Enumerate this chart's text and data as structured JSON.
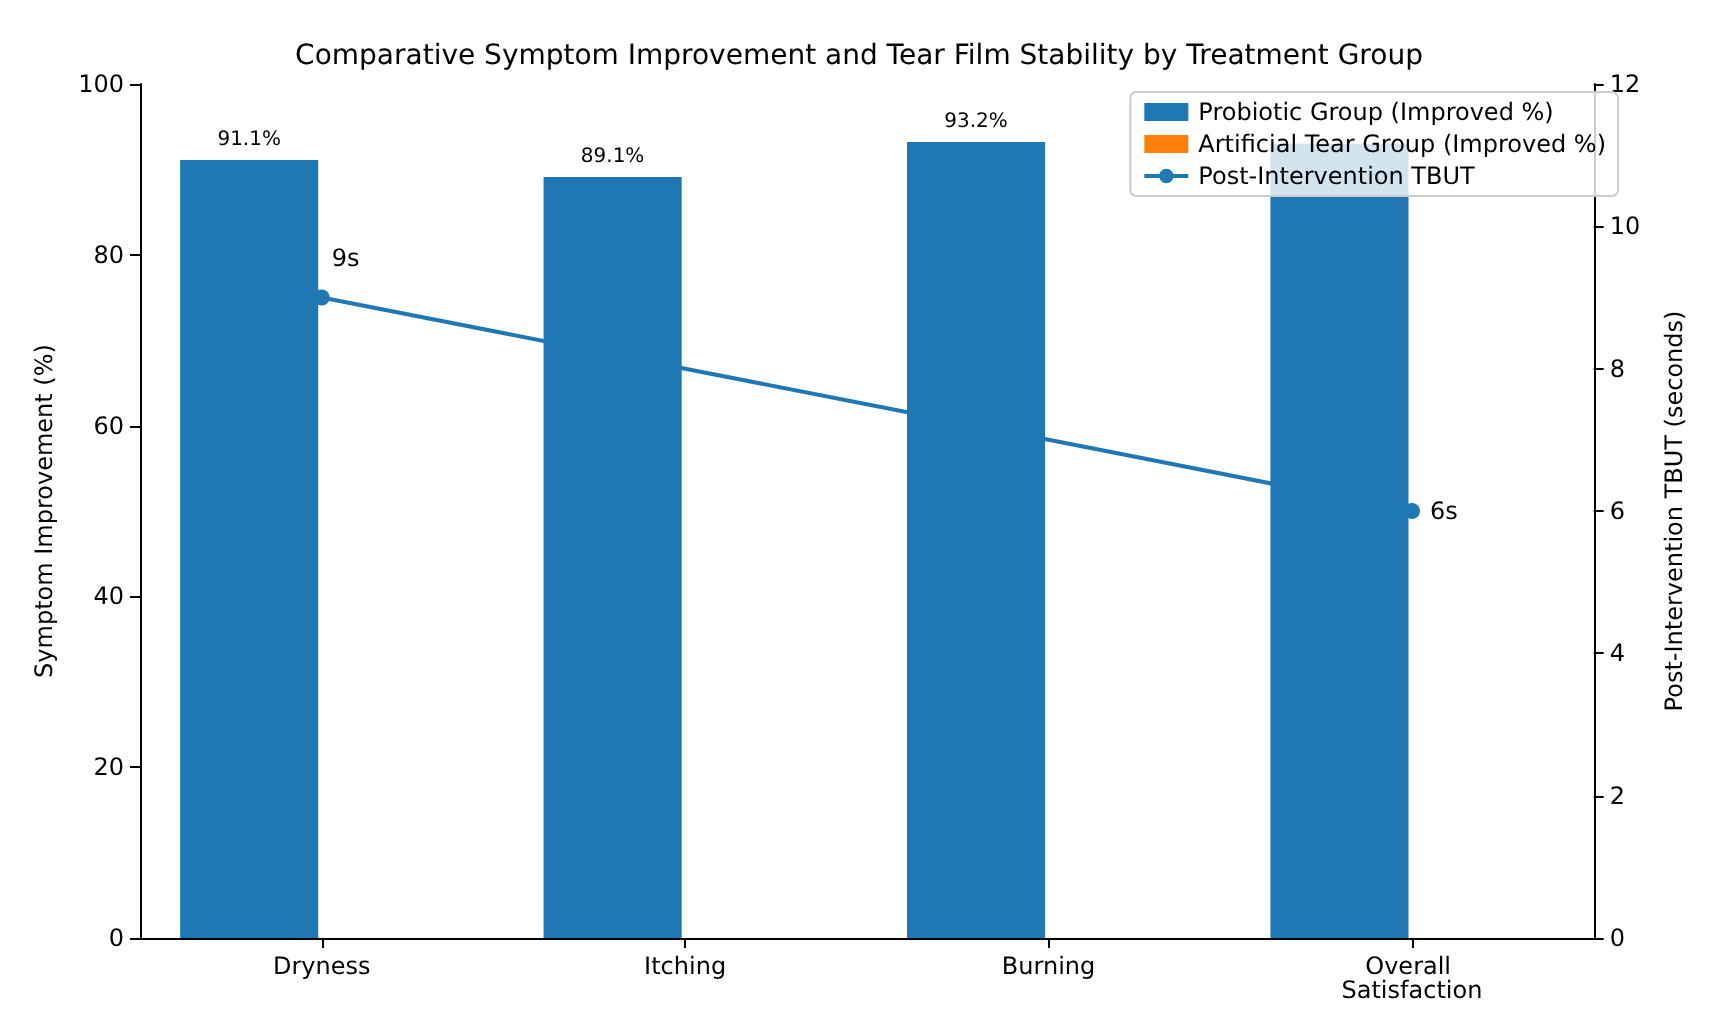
{
  "chart_data": {
    "type": "bar",
    "title": "Comparative Symptom Improvement and Tear Film Stability by Treatment Group",
    "ylabel": "Symptom Improvement (%)",
    "y2label": "Post-Intervention TBUT (seconds)",
    "categories": [
      "Dryness",
      "Itching",
      "Burning",
      "Overall Satisfaction"
    ],
    "series": [
      {
        "name": "Probiotic Group (Improved %)",
        "color": "#1f77b4",
        "values": [
          91.1,
          89.1,
          93.2,
          93
        ],
        "value_labels": [
          "91.1%",
          "89.1%",
          "93.2%",
          null
        ]
      },
      {
        "name": "Artificial Tear Group (Improved %)",
        "color": "#ff7f0e",
        "values": [
          0,
          0,
          0,
          0
        ]
      },
      {
        "name": "Post-Intervention TBUT",
        "type": "line",
        "axis": "y2",
        "color": "#1f77b4",
        "values": [
          9,
          8,
          7,
          6
        ],
        "value_labels": [
          "9s",
          null,
          null,
          "6s"
        ],
        "marker": "circle"
      }
    ],
    "ylim": [
      0,
      100
    ],
    "yticks": [
      0,
      20,
      40,
      60,
      80,
      100
    ],
    "y2lim": [
      0,
      12
    ],
    "y2ticks": [
      0,
      2,
      4,
      6,
      8,
      10,
      12
    ],
    "legend": "top right",
    "grid": false
  }
}
